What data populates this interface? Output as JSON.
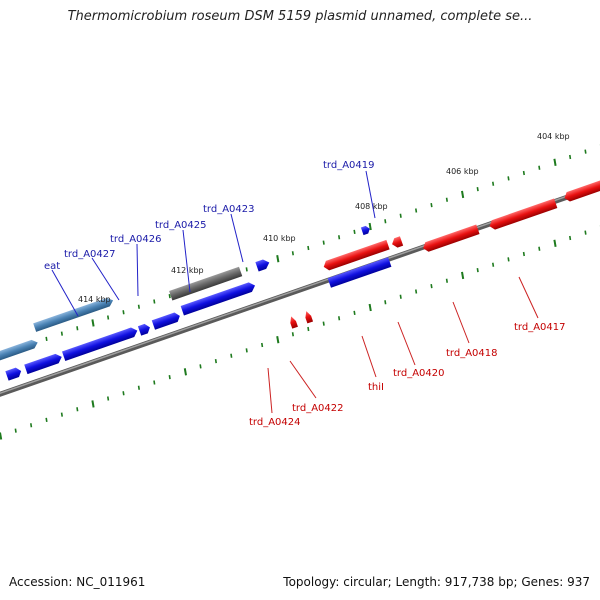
{
  "title": "Thermomicrobium roseum DSM 5159 plasmid unnamed, complete se...",
  "footer": {
    "accession": "Accession: NC_011961",
    "summary": "Topology: circular; Length: 917,738 bp; Genes: 937"
  },
  "kbp_ticks": [
    "404 kbp",
    "406 kbp",
    "408 kbp",
    "410 kbp",
    "412 kbp",
    "414 kbp"
  ],
  "forward_gene_labels": [
    "trd_A0419",
    "trd_A0423",
    "trd_A0425",
    "trd_A0426",
    "trd_A0427",
    "eat"
  ],
  "reverse_gene_labels": [
    "trd_A0417",
    "trd_A0418",
    "trd_A0420",
    "thiI",
    "trd_A0422",
    "trd_A0424"
  ],
  "colors": {
    "forward_gene": "#1010e0",
    "reverse_gene": "#e81010",
    "steelblue_gene": "#4a82b4",
    "gray_gene": "#666666",
    "orange_gene": "#f08c00",
    "backbone": "#808080",
    "tick": "#1e7a1e"
  }
}
